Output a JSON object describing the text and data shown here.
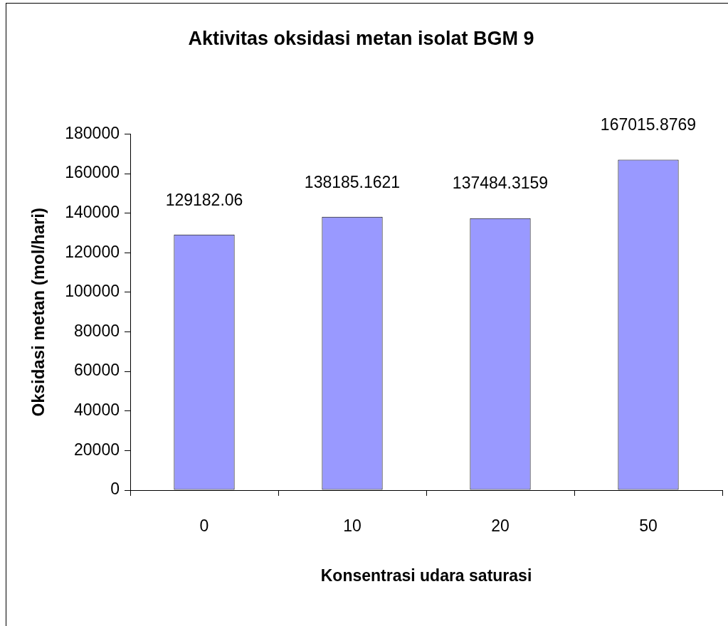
{
  "chart_data": {
    "type": "bar",
    "title": "Aktivitas oksidasi metan isolat BGM 9",
    "xlabel": "Konsentrasi udara saturasi",
    "ylabel": "Oksidasi metan (mol/hari)",
    "categories": [
      "0",
      "10",
      "20",
      "50"
    ],
    "values": [
      129182.06,
      138185.1621,
      137484.3159,
      167015.8769
    ],
    "color": "#9999ff",
    "ylim": [
      0,
      180000
    ],
    "yticks": [
      0,
      20000,
      40000,
      60000,
      80000,
      100000,
      120000,
      140000,
      160000,
      180000
    ],
    "data_labels": true
  }
}
